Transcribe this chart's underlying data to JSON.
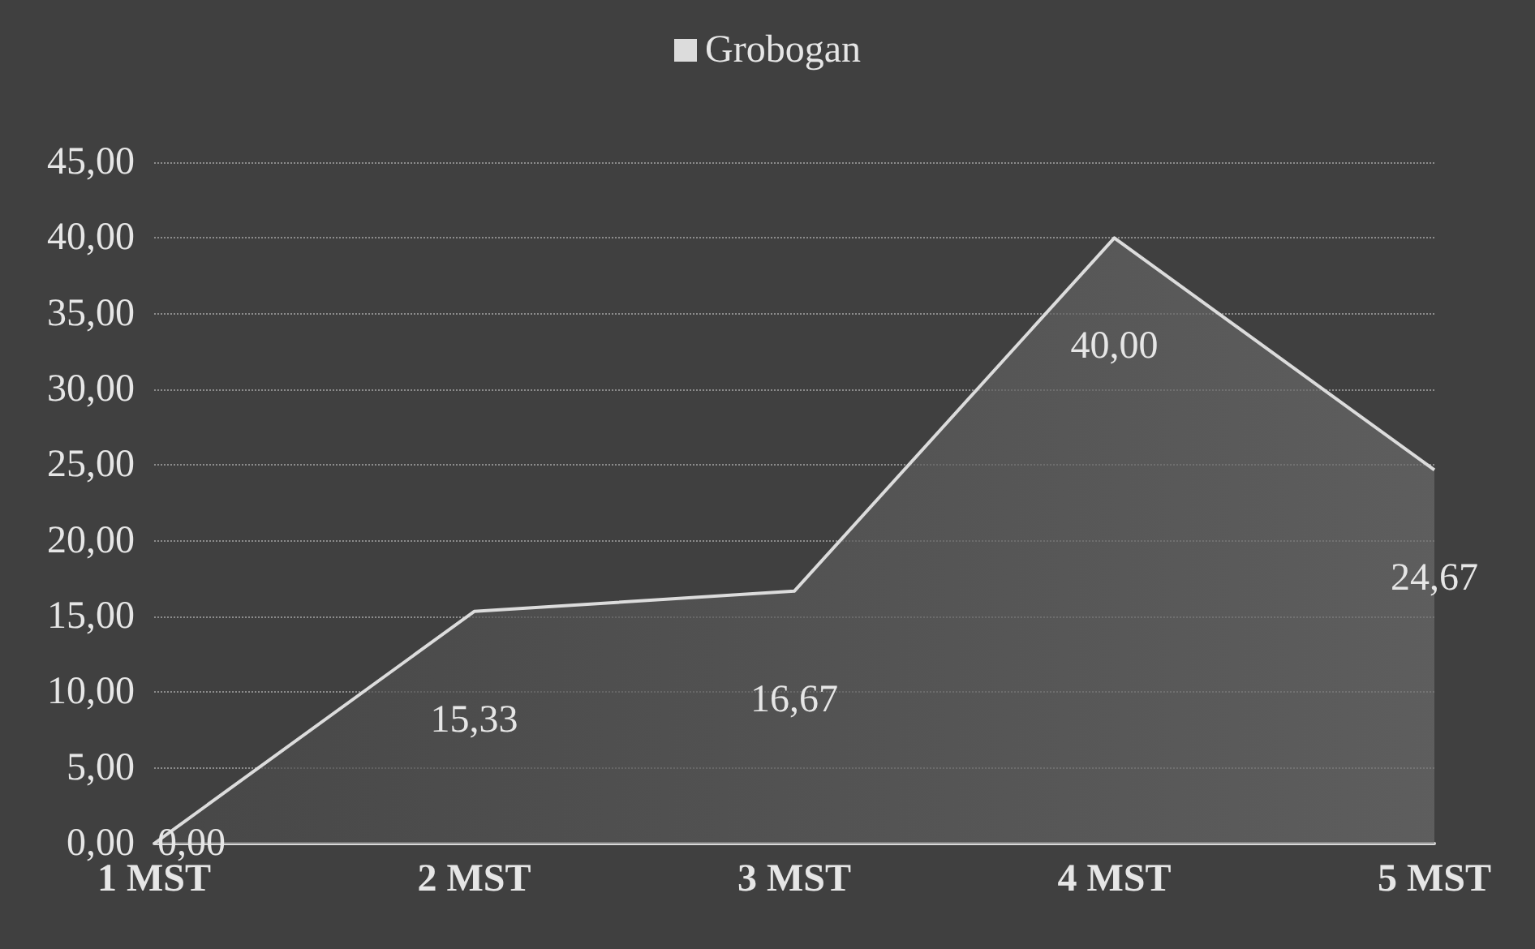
{
  "chart_data": {
    "type": "area",
    "categories": [
      "1 MST",
      "2 MST",
      "3 MST",
      "4 MST",
      "5 MST"
    ],
    "series": [
      {
        "name": "Grobogan",
        "color": "#dcdcdc",
        "values": [
          0,
          15.33,
          16.67,
          40,
          24.67
        ]
      }
    ],
    "ylim": [
      0,
      45
    ],
    "yticks": [
      {
        "value": 0,
        "label": "0,00"
      },
      {
        "value": 5,
        "label": "5,00"
      },
      {
        "value": 10,
        "label": "10,00"
      },
      {
        "value": 15,
        "label": "15,00"
      },
      {
        "value": 20,
        "label": "20,00"
      },
      {
        "value": 25,
        "label": "25,00"
      },
      {
        "value": 30,
        "label": "30,00"
      },
      {
        "value": 35,
        "label": "35,00"
      },
      {
        "value": 40,
        "label": "40,00"
      },
      {
        "value": 45,
        "label": "45,00"
      }
    ],
    "value_labels": [
      "0,00",
      "15,33",
      "16,67",
      "40,00",
      "24,67"
    ],
    "grid": "y",
    "legend": "top",
    "marker": "none",
    "line_style": "solid"
  }
}
